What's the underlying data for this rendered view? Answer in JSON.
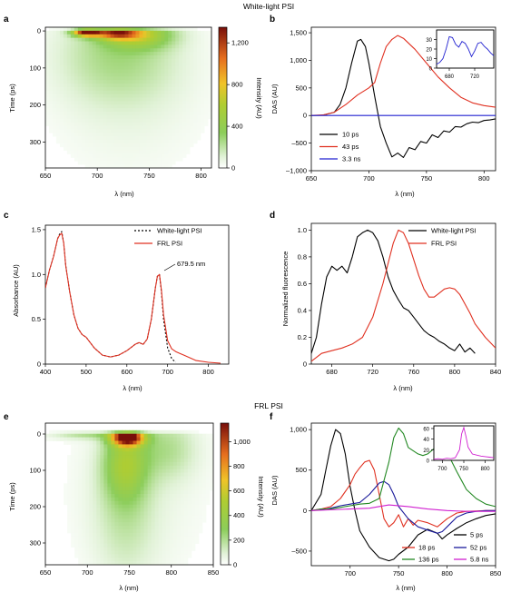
{
  "figure": {
    "top_title": "White-light PSI",
    "mid_title": "FRL PSI"
  },
  "panels": {
    "a": {
      "letter": "a",
      "ylabel": "Time (ps)",
      "xlabel": "λ (nm)",
      "cbar_label": "Intensity (AU)"
    },
    "b": {
      "letter": "b",
      "ylabel": "DAS (AU)",
      "xlabel": "λ (nm)"
    },
    "c": {
      "letter": "c",
      "ylabel": "Absorbance (AU)",
      "xlabel": "λ (nm)",
      "annotation": "679.5 nm"
    },
    "d": {
      "letter": "d",
      "ylabel": "Normalized fluorescence",
      "xlabel": "λ (nm)"
    },
    "e": {
      "letter": "e",
      "ylabel": "Time (ps)",
      "xlabel": "λ (nm)",
      "cbar_label": "Intensity (AU)"
    },
    "f": {
      "letter": "f",
      "ylabel": "DAS (AU)",
      "xlabel": "λ (nm)"
    }
  },
  "chart_data": [
    {
      "id": "a",
      "type": "heatmap",
      "x_ticks": [
        "650",
        "700",
        "750",
        "800"
      ],
      "xlim": [
        650,
        810
      ],
      "y_ticks": [
        "0",
        "100",
        "200",
        "300"
      ],
      "ylim": [
        -10,
        370
      ],
      "colorbar_ticks": [
        "0",
        "400",
        "800",
        "1,200"
      ],
      "colorbar_range": [
        0,
        1350
      ],
      "blobs": [
        {
          "x": 690,
          "y": 3,
          "sx": 9,
          "sy": 8,
          "amp": 1300
        },
        {
          "x": 718,
          "y": 5,
          "sx": 14,
          "sy": 12,
          "amp": 850
        },
        {
          "x": 740,
          "y": 10,
          "sx": 22,
          "sy": 25,
          "amp": 500
        },
        {
          "x": 720,
          "y": 60,
          "sx": 40,
          "sy": 90,
          "amp": 220
        },
        {
          "x": 730,
          "y": 180,
          "sx": 55,
          "sy": 160,
          "amp": 70
        }
      ]
    },
    {
      "id": "b",
      "type": "line",
      "x_ticks": [
        "650",
        "700",
        "750",
        "800"
      ],
      "xlim": [
        650,
        810
      ],
      "y_ticks": [
        "–1,000",
        "–500",
        "0",
        "500",
        "1,000",
        "1,500"
      ],
      "ylim": [
        -1000,
        1600
      ],
      "series": [
        {
          "name": "10 ps",
          "color": "#000000",
          "x": [
            650,
            660,
            670,
            675,
            680,
            685,
            690,
            693,
            697,
            700,
            705,
            710,
            715,
            720,
            725,
            730,
            735,
            740,
            745,
            750,
            755,
            760,
            765,
            770,
            775,
            780,
            785,
            790,
            795,
            800,
            805,
            810
          ],
          "y": [
            0,
            5,
            60,
            200,
            500,
            950,
            1350,
            1380,
            1250,
            950,
            350,
            -200,
            -500,
            -750,
            -680,
            -760,
            -580,
            -620,
            -470,
            -500,
            -350,
            -400,
            -280,
            -300,
            -200,
            -210,
            -150,
            -120,
            -130,
            -90,
            -80,
            -60
          ]
        },
        {
          "name": "43 ps",
          "color": "#e03020",
          "x": [
            650,
            660,
            670,
            680,
            690,
            700,
            705,
            710,
            715,
            720,
            725,
            730,
            740,
            750,
            760,
            770,
            780,
            790,
            800,
            810
          ],
          "y": [
            0,
            10,
            60,
            200,
            370,
            500,
            600,
            950,
            1250,
            1380,
            1450,
            1400,
            1200,
            950,
            700,
            500,
            330,
            230,
            180,
            150
          ]
        },
        {
          "name": "3.3 ns",
          "color": "#2020d0",
          "x": [
            650,
            700,
            750,
            810
          ],
          "y": [
            0,
            0,
            0,
            0
          ]
        }
      ],
      "inset": {
        "x_ticks": [
          "680",
          "720"
        ],
        "xlim": [
          660,
          750
        ],
        "y_ticks": [
          "0",
          "10",
          "20",
          "30"
        ],
        "ylim": [
          0,
          40
        ],
        "series": [
          {
            "color": "#2020d0",
            "x": [
              660,
              665,
              670,
              675,
              680,
              685,
              690,
              695,
              700,
              705,
              710,
              715,
              720,
              725,
              730,
              735,
              740,
              745,
              750
            ],
            "y": [
              4,
              6,
              10,
              20,
              33,
              32,
              25,
              22,
              28,
              26,
              20,
              12,
              18,
              26,
              27,
              23,
              20,
              16,
              13
            ]
          }
        ]
      }
    },
    {
      "id": "c",
      "type": "line",
      "x_ticks": [
        "400",
        "500",
        "600",
        "700",
        "800"
      ],
      "xlim": [
        400,
        850
      ],
      "y_ticks": [
        "0",
        "0.5",
        "1.0",
        "1.5"
      ],
      "ylim": [
        0,
        1.55
      ],
      "series": [
        {
          "name": "White-light PSI",
          "color": "#000000",
          "dashed": true,
          "x": [
            400,
            410,
            420,
            430,
            435,
            440,
            445,
            450,
            460,
            470,
            480,
            490,
            500,
            520,
            540,
            560,
            580,
            600,
            620,
            630,
            640,
            650,
            660,
            670,
            675,
            680,
            685,
            690,
            700,
            710,
            720
          ],
          "y": [
            0.85,
            1.05,
            1.2,
            1.4,
            1.45,
            1.48,
            1.35,
            1.1,
            0.8,
            0.55,
            0.4,
            0.33,
            0.3,
            0.18,
            0.1,
            0.08,
            0.1,
            0.15,
            0.22,
            0.24,
            0.22,
            0.28,
            0.5,
            0.85,
            0.98,
            1.0,
            0.8,
            0.5,
            0.18,
            0.06,
            0.02
          ]
        },
        {
          "name": "FRL PSI",
          "color": "#e03020",
          "x": [
            400,
            410,
            420,
            430,
            435,
            440,
            445,
            450,
            460,
            470,
            480,
            490,
            500,
            520,
            540,
            560,
            580,
            600,
            620,
            630,
            640,
            650,
            660,
            670,
            675,
            680,
            685,
            690,
            700,
            710,
            720,
            730,
            740,
            750,
            770,
            800,
            830
          ],
          "y": [
            0.85,
            1.05,
            1.2,
            1.4,
            1.44,
            1.46,
            1.35,
            1.1,
            0.8,
            0.55,
            0.4,
            0.33,
            0.3,
            0.18,
            0.1,
            0.08,
            0.1,
            0.15,
            0.22,
            0.24,
            0.22,
            0.28,
            0.5,
            0.85,
            0.98,
            1.0,
            0.82,
            0.55,
            0.26,
            0.17,
            0.14,
            0.12,
            0.1,
            0.08,
            0.04,
            0.02,
            0.01
          ]
        }
      ]
    },
    {
      "id": "d",
      "type": "line",
      "x_ticks": [
        "680",
        "720",
        "760",
        "800",
        "840"
      ],
      "xlim": [
        660,
        840
      ],
      "y_ticks": [
        "0",
        "0.2",
        "0.4",
        "0.6",
        "0.8",
        "1.0"
      ],
      "ylim": [
        0,
        1.05
      ],
      "series": [
        {
          "name": "White-light PSI",
          "color": "#000000",
          "x": [
            660,
            665,
            670,
            675,
            680,
            685,
            690,
            695,
            700,
            705,
            710,
            715,
            720,
            725,
            730,
            735,
            740,
            745,
            750,
            755,
            760,
            765,
            770,
            775,
            780,
            785,
            790,
            795,
            800,
            805,
            810,
            815,
            820
          ],
          "y": [
            0.08,
            0.2,
            0.45,
            0.65,
            0.73,
            0.7,
            0.73,
            0.68,
            0.8,
            0.95,
            0.98,
            1.0,
            0.98,
            0.92,
            0.8,
            0.65,
            0.55,
            0.48,
            0.42,
            0.4,
            0.35,
            0.3,
            0.25,
            0.22,
            0.2,
            0.17,
            0.15,
            0.12,
            0.1,
            0.15,
            0.09,
            0.12,
            0.08
          ]
        },
        {
          "name": "FRL PSI",
          "color": "#e03020",
          "x": [
            660,
            670,
            680,
            690,
            700,
            710,
            720,
            730,
            740,
            745,
            750,
            755,
            760,
            765,
            770,
            775,
            780,
            785,
            790,
            795,
            800,
            805,
            810,
            815,
            820,
            830,
            840
          ],
          "y": [
            0.02,
            0.08,
            0.1,
            0.12,
            0.15,
            0.2,
            0.35,
            0.6,
            0.9,
            1.0,
            0.98,
            0.9,
            0.78,
            0.66,
            0.56,
            0.5,
            0.5,
            0.53,
            0.56,
            0.57,
            0.56,
            0.52,
            0.45,
            0.38,
            0.3,
            0.2,
            0.12
          ]
        }
      ]
    },
    {
      "id": "e",
      "type": "heatmap",
      "x_ticks": [
        "650",
        "700",
        "750",
        "800",
        "850"
      ],
      "xlim": [
        650,
        850
      ],
      "y_ticks": [
        "0",
        "100",
        "200",
        "300"
      ],
      "ylim": [
        -30,
        360
      ],
      "colorbar_ticks": [
        "0",
        "200",
        "400",
        "600",
        "800",
        "1,000"
      ],
      "colorbar_range": [
        0,
        1150
      ],
      "blobs": [
        {
          "x": 748,
          "y": 10,
          "sx": 13,
          "sy": 15,
          "amp": 1150
        },
        {
          "x": 745,
          "y": 80,
          "sx": 18,
          "sy": 70,
          "amp": 380
        },
        {
          "x": 745,
          "y": 230,
          "sx": 25,
          "sy": 120,
          "amp": 120
        },
        {
          "x": 795,
          "y": 40,
          "sx": 25,
          "sy": 60,
          "amp": 160
        },
        {
          "x": 700,
          "y": 0,
          "sx": 30,
          "sy": 10,
          "amp": 180
        },
        {
          "x": 760,
          "y": 150,
          "sx": 60,
          "sy": 200,
          "amp": 60
        }
      ]
    },
    {
      "id": "f",
      "type": "line",
      "x_ticks": [
        "700",
        "750",
        "800",
        "850"
      ],
      "xlim": [
        660,
        850
      ],
      "y_ticks": [
        "–500",
        "0",
        "500",
        "1,000"
      ],
      "ylim": [
        -680,
        1080
      ],
      "series": [
        {
          "name": "5 ps",
          "color": "#000000",
          "x": [
            660,
            670,
            675,
            680,
            685,
            690,
            695,
            700,
            705,
            710,
            720,
            730,
            740,
            745,
            750,
            760,
            770,
            780,
            790,
            795,
            800,
            810,
            820,
            830,
            840,
            850
          ],
          "y": [
            0,
            200,
            500,
            800,
            1000,
            950,
            700,
            300,
            0,
            -250,
            -450,
            -580,
            -620,
            -600,
            -540,
            -450,
            -300,
            -230,
            -280,
            -350,
            -300,
            -220,
            -150,
            -100,
            -60,
            -40
          ]
        },
        {
          "name": "18 ps",
          "color": "#e03020",
          "x": [
            660,
            670,
            680,
            690,
            700,
            705,
            710,
            715,
            720,
            725,
            730,
            735,
            740,
            745,
            750,
            755,
            760,
            765,
            770,
            780,
            790,
            800,
            810,
            820,
            830,
            840,
            850
          ],
          "y": [
            0,
            20,
            50,
            150,
            320,
            450,
            530,
            600,
            620,
            500,
            200,
            -100,
            -200,
            -150,
            -50,
            -200,
            -100,
            -180,
            -120,
            -150,
            -200,
            -100,
            -30,
            -10,
            -5,
            0,
            0
          ]
        },
        {
          "name": "52 ps",
          "color": "#1a1a9a",
          "x": [
            660,
            670,
            680,
            690,
            700,
            710,
            720,
            730,
            735,
            740,
            745,
            750,
            760,
            770,
            780,
            790,
            795,
            800,
            810,
            820,
            830,
            840,
            850
          ],
          "y": [
            0,
            10,
            30,
            60,
            80,
            100,
            200,
            340,
            360,
            320,
            200,
            50,
            -100,
            -200,
            -240,
            -280,
            -260,
            -200,
            -80,
            -30,
            -10,
            0,
            0
          ]
        },
        {
          "name": "136 ps",
          "color": "#228822",
          "x": [
            660,
            670,
            680,
            690,
            700,
            710,
            720,
            730,
            740,
            745,
            750,
            755,
            760,
            770,
            775,
            780,
            790,
            800,
            810,
            820,
            830,
            840,
            850
          ],
          "y": [
            0,
            20,
            20,
            40,
            60,
            80,
            90,
            150,
            600,
            900,
            1020,
            950,
            780,
            700,
            680,
            700,
            800,
            720,
            480,
            260,
            150,
            80,
            50
          ]
        },
        {
          "name": "5.8 ns",
          "color": "#d020d0",
          "x": [
            660,
            700,
            720,
            740,
            760,
            780,
            800,
            820,
            850
          ],
          "y": [
            0,
            20,
            30,
            70,
            50,
            20,
            0,
            -10,
            -10
          ]
        }
      ],
      "inset": {
        "x_ticks": [
          "700",
          "750",
          "800"
        ],
        "xlim": [
          680,
          820
        ],
        "y_ticks": [
          "0",
          "20",
          "40",
          "60"
        ],
        "ylim": [
          0,
          65
        ],
        "series": [
          {
            "color": "#d020d0",
            "x": [
              680,
              690,
              700,
              710,
              720,
              730,
              740,
              745,
              750,
              755,
              760,
              770,
              780,
              790,
              800,
              810,
              820
            ],
            "y": [
              2,
              3,
              2,
              4,
              3,
              5,
              20,
              50,
              62,
              45,
              25,
              12,
              10,
              8,
              7,
              6,
              5
            ]
          }
        ]
      }
    }
  ]
}
